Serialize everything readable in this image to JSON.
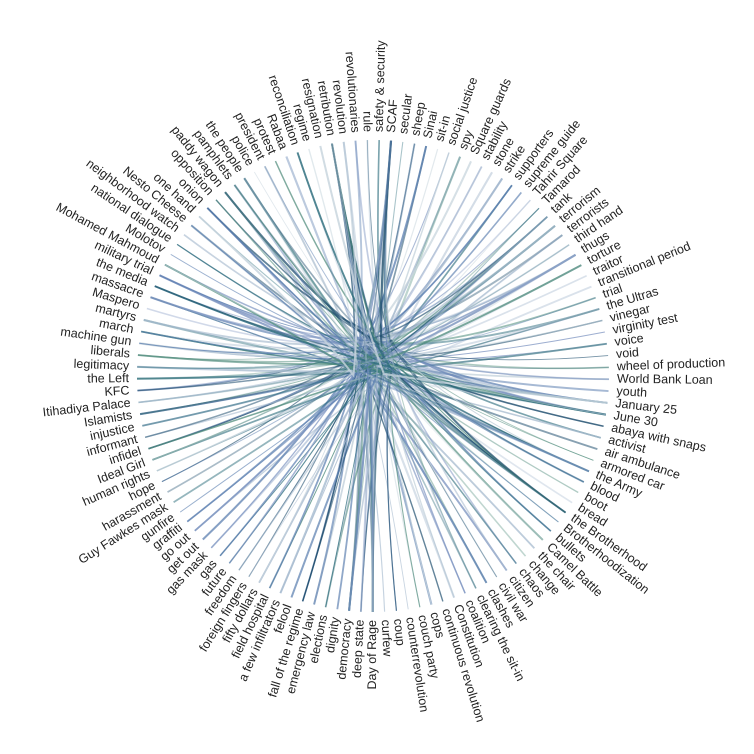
{
  "nodes": [
    "safety & security",
    "SCAF",
    "secular",
    "sheep",
    "Sinai",
    "sit-in",
    "social justice",
    "spy",
    "Square guards",
    "stability",
    "stone",
    "strike",
    "supporters",
    "supreme guide",
    "Tahrir Square",
    "Tamarod",
    "tank",
    "terrorism",
    "terrorists",
    "third hand",
    "thugs",
    "torture",
    "traitor",
    "transitional period",
    "trial",
    "the Ultras",
    "vinegar",
    "virginity test",
    "voice",
    "void",
    "wheel of production",
    "World Bank Loan",
    "youth",
    "January 25",
    "June 30",
    "abaya with snaps",
    "activist",
    "air ambulance",
    "armored car",
    "the Army",
    "blood",
    "boot",
    "bread",
    "the Brotherhood",
    "Brotherhoodization",
    "bullets",
    "Camel Battle",
    "the chair",
    "change",
    "chaos",
    "citizen",
    "civil war",
    "clashes",
    "clearing the sit-in",
    "coalition",
    "Constitution",
    "continuous revolution",
    "cops",
    "couch party",
    "counterrevolution",
    "coup",
    "curfew",
    "Day of Rage",
    "deep state",
    "democracy",
    "dignity",
    "elections",
    "emergency law",
    "fall of the regime",
    "felool",
    "a few infiltrators",
    "field hospital",
    "fifty dollars",
    "foreign fingers",
    "freedom",
    "future",
    "gas",
    "gas mask",
    "get out",
    "go out",
    "graffiti",
    "gunfire",
    "Guy Fawkes mask",
    "harassment",
    "hope",
    "human rights",
    "Ideal Girl",
    "infidel",
    "informant",
    "injustice",
    "Islamists",
    "Itihadiya Palace",
    "KFC",
    "the Left",
    "legitimacy",
    "liberals",
    "machine gun",
    "march",
    "martyrs",
    "Maspero",
    "massacre",
    "the media",
    "military trial",
    "Mohamed Mahmoud",
    "Molotov",
    "national dialogue",
    "neighborhood watch",
    "Nesto Cheese",
    "one hand",
    "onion",
    "opposition",
    "paddy wagon",
    "pamphlets",
    "the people",
    "police",
    "president",
    "protest",
    "Rabaa",
    "reconciliation",
    "regime",
    "resignation",
    "retribution",
    "revolution",
    "revolutionaries",
    "rule"
  ]
}
